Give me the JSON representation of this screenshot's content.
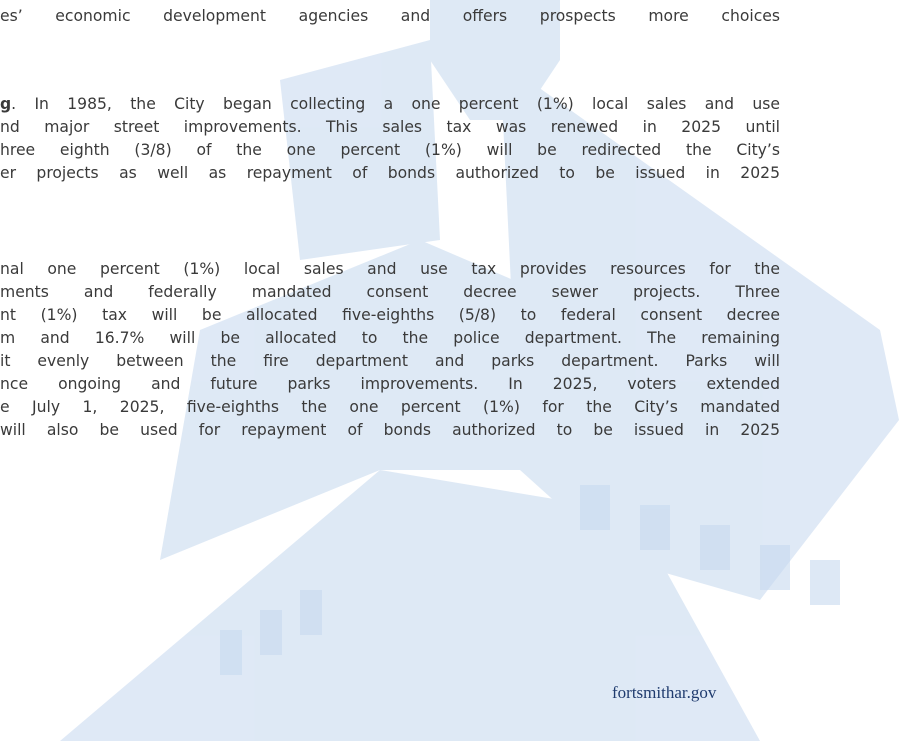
{
  "paragraphs": [
    {
      "lines": [
        "es’ economic development agencies and offers prospects more choices"
      ]
    },
    {
      "lead": "g",
      "lines": [
        ". In 1985, the City began collecting a one percent (1%) local sales and use",
        "nd major street improvements. This sales tax was renewed in 2025 until",
        "hree eighth (3/8) of the one percent (1%) will be redirected the City’s",
        "er projects as well as repayment of bonds authorized to be issued in 2025"
      ]
    },
    {
      "lines": [
        "nal one percent (1%) local sales and use tax provides resources for the",
        "ments and federally mandated consent decree sewer projects. Three",
        "nt (1%) tax will be allocated five-eighths (5/8) to federal consent decree",
        "m and 16.7% will be allocated to the police department.  The remaining",
        "it evenly between the fire department and parks department.  Parks will",
        "nce ongoing and future parks improvements.  In 2025, voters extended",
        "e July 1, 2025, five-eighths the one percent (1%) for the City’s mandated",
        " will also be used for repayment of bonds authorized to be issued in 2025"
      ]
    }
  ],
  "footer": "fortsmithar.gov"
}
